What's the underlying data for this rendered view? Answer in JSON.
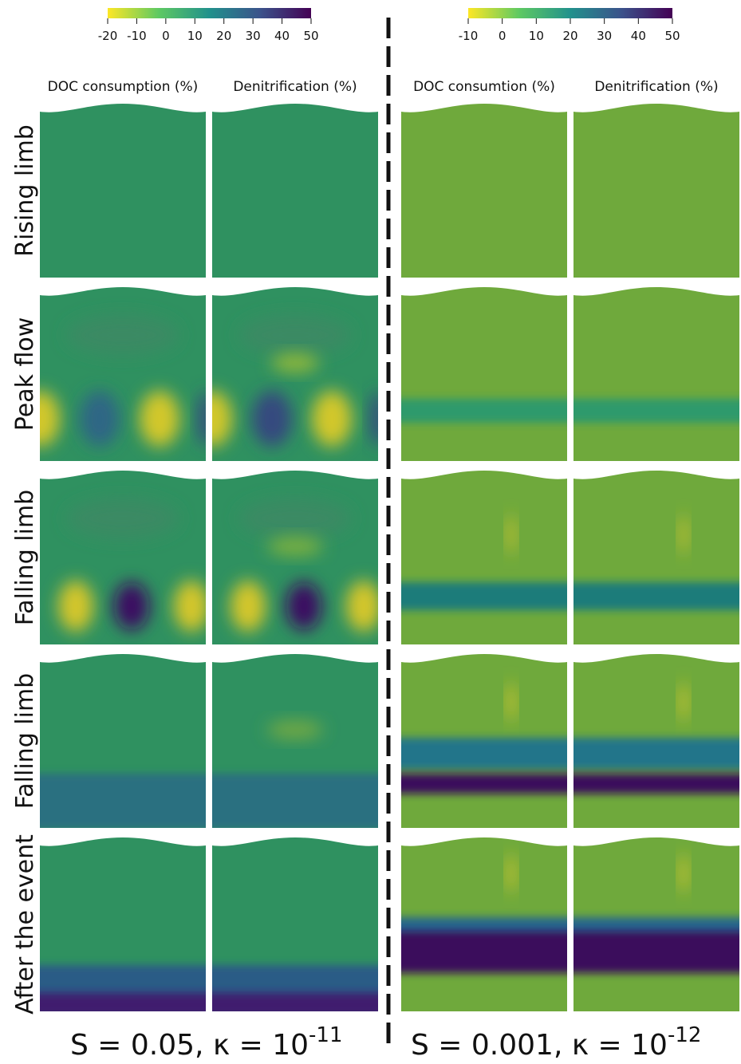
{
  "colorbars": [
    {
      "lim": [
        -20,
        50
      ],
      "ticks": [
        -20,
        -10,
        0,
        10,
        20,
        30,
        40,
        50
      ]
    },
    {
      "lim": [
        -10,
        50
      ],
      "ticks": [
        -10,
        0,
        10,
        20,
        30,
        40,
        50
      ]
    }
  ],
  "columns": [
    "DOC consumption (%)",
    "Denitrification (%)",
    "DOC consumtion (%)",
    "Denitrification  (%)"
  ],
  "rows": [
    "Rising limb",
    "Peak flow",
    "Falling limb",
    "Falling limb",
    "After the event"
  ],
  "captions": [
    {
      "text": "S = 0.05, κ = 10",
      "exponent": "-11"
    },
    {
      "text": "S = 0.001, κ = 10",
      "exponent": "-12"
    }
  ]
}
